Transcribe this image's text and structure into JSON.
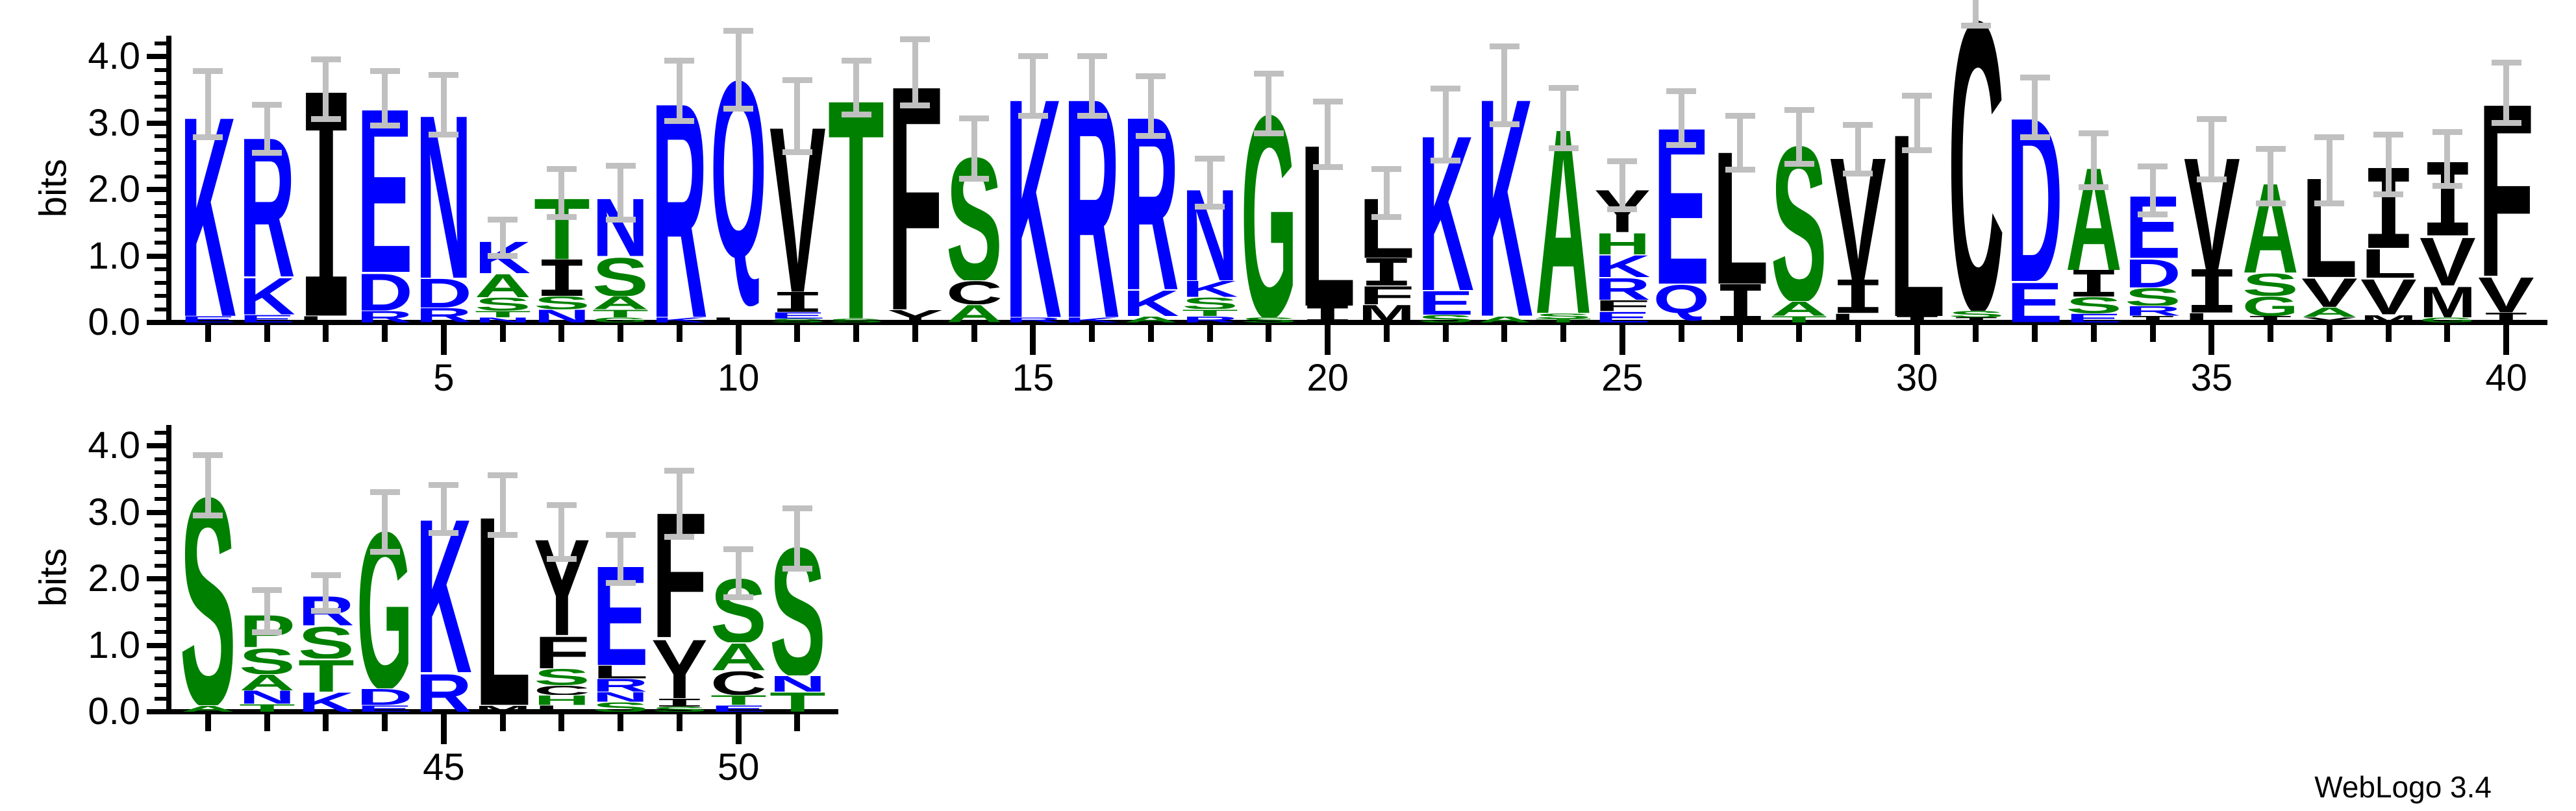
{
  "app": {
    "credit": "WebLogo 3.4"
  },
  "chart_data": {
    "type": "sequence_logo",
    "title": "",
    "ylabel": "bits",
    "ylim": [
      0,
      4.0
    ],
    "ytick_labels": [
      "0.0",
      "1.0",
      "2.0",
      "3.0",
      "4.0"
    ],
    "ytick_minor_step": 0.2,
    "grid": false,
    "error_bar_color": "#c0c0c0",
    "color_scheme": {
      "name": "hydrophobicity",
      "groups": [
        {
          "label": "hydrophilic",
          "residues": "RKDENQ",
          "color": "#0000ff"
        },
        {
          "label": "neutral",
          "residues": "SGHTAP",
          "color": "#008000"
        },
        {
          "label": "hydrophobic",
          "residues": "CFILMVWY",
          "color": "#000000"
        }
      ]
    },
    "rows": [
      {
        "positions_start": 1,
        "xtick_labels": [
          5,
          10,
          15,
          20,
          25,
          30,
          35,
          40
        ],
        "stacks": [
          {
            "pos": 1,
            "err": 0.6,
            "letters": [
              [
                "K",
                3.12
              ],
              [
                "E",
                0.1
              ]
            ]
          },
          {
            "pos": 2,
            "err": 0.45,
            "letters": [
              [
                "R",
                2.18
              ],
              [
                "K",
                0.57
              ],
              [
                "E",
                0.12
              ]
            ]
          },
          {
            "pos": 3,
            "err": 0.55,
            "letters": [
              [
                "I",
                3.35
              ],
              [
                "L",
                0.1
              ]
            ]
          },
          {
            "pos": 4,
            "err": 0.5,
            "letters": [
              [
                "E",
                2.56
              ],
              [
                "D",
                0.58
              ],
              [
                "R",
                0.18
              ]
            ]
          },
          {
            "pos": 5,
            "err": 0.55,
            "letters": [
              [
                "N",
                2.55
              ],
              [
                "D",
                0.45
              ],
              [
                "R",
                0.22
              ]
            ]
          },
          {
            "pos": 6,
            "err": 0.35,
            "letters": [
              [
                "K",
                0.5
              ],
              [
                "A",
                0.36
              ],
              [
                "S",
                0.2
              ],
              [
                "T",
                0.1
              ],
              [
                "N",
                0.08
              ]
            ]
          },
          {
            "pos": 7,
            "err": 0.45,
            "letters": [
              [
                "T",
                0.95
              ],
              [
                "I",
                0.55
              ],
              [
                "S",
                0.2
              ],
              [
                "N",
                0.2
              ]
            ]
          },
          {
            "pos": 8,
            "err": 0.5,
            "letters": [
              [
                "N",
                0.9
              ],
              [
                "S",
                0.6
              ],
              [
                "A",
                0.2
              ],
              [
                "T",
                0.12
              ],
              [
                "G",
                0.08
              ]
            ]
          },
          {
            "pos": 9,
            "err": 0.55,
            "letters": [
              [
                "R",
                3.35
              ],
              [
                "K",
                0.08
              ]
            ]
          },
          {
            "pos": 10,
            "err": 0.7,
            "letters": [
              [
                "Q",
                3.65
              ],
              [
                "L",
                0.08
              ]
            ]
          },
          {
            "pos": 11,
            "err": 0.65,
            "letters": [
              [
                "V",
                2.58
              ],
              [
                "I",
                0.3
              ],
              [
                "E",
                0.1
              ],
              [
                "S",
                0.06
              ]
            ]
          },
          {
            "pos": 12,
            "err": 0.5,
            "letters": [
              [
                "T",
                3.42
              ],
              [
                "S",
                0.06
              ]
            ]
          },
          {
            "pos": 13,
            "err": 0.6,
            "letters": [
              [
                "F",
                3.5
              ],
              [
                "Y",
                0.2
              ]
            ]
          },
          {
            "pos": 14,
            "err": 0.55,
            "letters": [
              [
                "S",
                1.93
              ],
              [
                "C",
                0.36
              ],
              [
                "A",
                0.27
              ]
            ]
          },
          {
            "pos": 15,
            "err": 0.55,
            "letters": [
              [
                "K",
                3.42
              ],
              [
                "R",
                0.08
              ]
            ]
          },
          {
            "pos": 16,
            "err": 0.55,
            "letters": [
              [
                "R",
                3.42
              ],
              [
                "K",
                0.08
              ]
            ]
          },
          {
            "pos": 17,
            "err": 0.55,
            "letters": [
              [
                "R",
                2.7
              ],
              [
                "K",
                0.4
              ],
              [
                "A",
                0.1
              ]
            ]
          },
          {
            "pos": 18,
            "err": 0.45,
            "letters": [
              [
                "N",
                1.43
              ],
              [
                "K",
                0.25
              ],
              [
                "S",
                0.18
              ],
              [
                "T",
                0.1
              ],
              [
                "R",
                0.1
              ]
            ]
          },
          {
            "pos": 19,
            "err": 0.55,
            "letters": [
              [
                "G",
                3.16
              ],
              [
                "S",
                0.08
              ]
            ]
          },
          {
            "pos": 20,
            "err": 0.6,
            "letters": [
              [
                "L",
                2.52
              ],
              [
                "I",
                0.25
              ]
            ]
          },
          {
            "pos": 21,
            "err": 0.45,
            "letters": [
              [
                "L",
                0.93
              ],
              [
                "I",
                0.41
              ],
              [
                "F",
                0.29
              ],
              [
                "M",
                0.27
              ]
            ]
          },
          {
            "pos": 22,
            "err": 0.65,
            "letters": [
              [
                "K",
                2.42
              ],
              [
                "E",
                0.37
              ],
              [
                "S",
                0.12
              ]
            ]
          },
          {
            "pos": 23,
            "err": 0.7,
            "letters": [
              [
                "K",
                3.4
              ],
              [
                "A",
                0.1
              ]
            ]
          },
          {
            "pos": 24,
            "err": 0.55,
            "letters": [
              [
                "A",
                2.88
              ],
              [
                "S",
                0.08
              ],
              [
                "T",
                0.06
              ]
            ]
          },
          {
            "pos": 25,
            "err": 0.45,
            "letters": [
              [
                "Y",
                0.66
              ],
              [
                "H",
                0.34
              ],
              [
                "K",
                0.34
              ],
              [
                "R",
                0.34
              ],
              [
                "F",
                0.17
              ],
              [
                "E",
                0.17
              ]
            ]
          },
          {
            "pos": 26,
            "err": 0.5,
            "letters": [
              [
                "E",
                2.44
              ],
              [
                "Q",
                0.58
              ]
            ]
          },
          {
            "pos": 27,
            "err": 0.5,
            "letters": [
              [
                "L",
                2.07
              ],
              [
                "I",
                0.58
              ]
            ]
          },
          {
            "pos": 28,
            "err": 0.5,
            "letters": [
              [
                "S",
                2.42
              ],
              [
                "A",
                0.22
              ],
              [
                "T",
                0.1
              ]
            ]
          },
          {
            "pos": 29,
            "err": 0.45,
            "letters": [
              [
                "V",
                1.92
              ],
              [
                "I",
                0.5
              ],
              [
                "L",
                0.14
              ]
            ]
          },
          {
            "pos": 30,
            "err": 0.5,
            "letters": [
              [
                "L",
                2.85
              ],
              [
                "I",
                0.1
              ]
            ]
          },
          {
            "pos": 31,
            "err": 0.35,
            "letters": [
              [
                "C",
                4.52
              ],
              [
                "S",
                0.1
              ],
              [
                "I",
                0.08
              ]
            ]
          },
          {
            "pos": 32,
            "err": 0.55,
            "letters": [
              [
                "D",
                2.56
              ],
              [
                "E",
                0.62
              ]
            ]
          },
          {
            "pos": 33,
            "err": 0.5,
            "letters": [
              [
                "A",
                1.6
              ],
              [
                "I",
                0.4
              ],
              [
                "S",
                0.25
              ],
              [
                "E",
                0.14
              ]
            ]
          },
          {
            "pos": 34,
            "err": 0.45,
            "letters": [
              [
                "E",
                0.97
              ],
              [
                "D",
                0.44
              ],
              [
                "S",
                0.28
              ],
              [
                "R",
                0.15
              ],
              [
                "I",
                0.1
              ]
            ]
          },
          {
            "pos": 35,
            "err": 0.55,
            "letters": [
              [
                "V",
                1.75
              ],
              [
                "I",
                0.65
              ],
              [
                "L",
                0.15
              ]
            ]
          },
          {
            "pos": 36,
            "err": 0.5,
            "letters": [
              [
                "A",
                1.4
              ],
              [
                "S",
                0.35
              ],
              [
                "G",
                0.3
              ],
              [
                "I",
                0.1
              ]
            ]
          },
          {
            "pos": 37,
            "err": 0.6,
            "letters": [
              [
                "L",
                1.55
              ],
              [
                "V",
                0.45
              ],
              [
                "A",
                0.15
              ],
              [
                "Y",
                0.08
              ]
            ]
          },
          {
            "pos": 38,
            "err": 0.55,
            "letters": [
              [
                "I",
                1.2
              ],
              [
                "L",
                0.45
              ],
              [
                "V",
                0.55
              ],
              [
                "M",
                0.12
              ]
            ]
          },
          {
            "pos": 39,
            "err": 0.5,
            "letters": [
              [
                "I",
                1.1
              ],
              [
                "V",
                0.75
              ],
              [
                "M",
                0.48
              ],
              [
                "G",
                0.08
              ]
            ]
          },
          {
            "pos": 40,
            "err": 0.55,
            "letters": [
              [
                "F",
                2.7
              ],
              [
                "V",
                0.55
              ],
              [
                "I",
                0.15
              ]
            ]
          }
        ]
      },
      {
        "positions_start": 41,
        "xtick_labels": [
          45,
          50
        ],
        "stacks": [
          {
            "pos": 41,
            "err": 0.55,
            "letters": [
              [
                "S",
                3.25
              ],
              [
                "A",
                0.1
              ]
            ]
          },
          {
            "pos": 42,
            "err": 0.4,
            "letters": [
              [
                "P",
                0.5
              ],
              [
                "S",
                0.4
              ],
              [
                "A",
                0.25
              ],
              [
                "N",
                0.2
              ],
              [
                "T",
                0.12
              ]
            ]
          },
          {
            "pos": 43,
            "err": 0.35,
            "letters": [
              [
                "R",
                0.45
              ],
              [
                "S",
                0.5
              ],
              [
                "T",
                0.5
              ],
              [
                "K",
                0.3
              ]
            ]
          },
          {
            "pos": 44,
            "err": 0.55,
            "letters": [
              [
                "G",
                2.45
              ],
              [
                "D",
                0.25
              ],
              [
                "E",
                0.1
              ]
            ]
          },
          {
            "pos": 45,
            "err": 0.45,
            "letters": [
              [
                "K",
                2.4
              ],
              [
                "R",
                0.6
              ]
            ]
          },
          {
            "pos": 46,
            "err": 0.55,
            "letters": [
              [
                "L",
                2.95
              ],
              [
                "M",
                0.1
              ]
            ]
          },
          {
            "pos": 47,
            "err": 0.5,
            "letters": [
              [
                "Y",
                1.5
              ],
              [
                "F",
                0.5
              ],
              [
                "S",
                0.25
              ],
              [
                "C",
                0.15
              ],
              [
                "H",
                0.15
              ],
              [
                "L",
                0.1
              ]
            ]
          },
          {
            "pos": 48,
            "err": 0.45,
            "letters": [
              [
                "E",
                1.55
              ],
              [
                "L",
                0.2
              ],
              [
                "R",
                0.2
              ],
              [
                "N",
                0.15
              ],
              [
                "S",
                0.15
              ]
            ]
          },
          {
            "pos": 49,
            "err": 0.6,
            "letters": [
              [
                "F",
                1.95
              ],
              [
                "Y",
                0.92
              ],
              [
                "I",
                0.12
              ],
              [
                "S",
                0.08
              ]
            ]
          },
          {
            "pos": 50,
            "err": 0.45,
            "letters": [
              [
                "S",
                1.0
              ],
              [
                "A",
                0.42
              ],
              [
                "C",
                0.37
              ],
              [
                "T",
                0.15
              ],
              [
                "E",
                0.1
              ]
            ]
          },
          {
            "pos": 51,
            "err": 0.55,
            "letters": [
              [
                "S",
                2.0
              ],
              [
                "N",
                0.25
              ],
              [
                "T",
                0.3
              ]
            ]
          }
        ]
      }
    ]
  }
}
